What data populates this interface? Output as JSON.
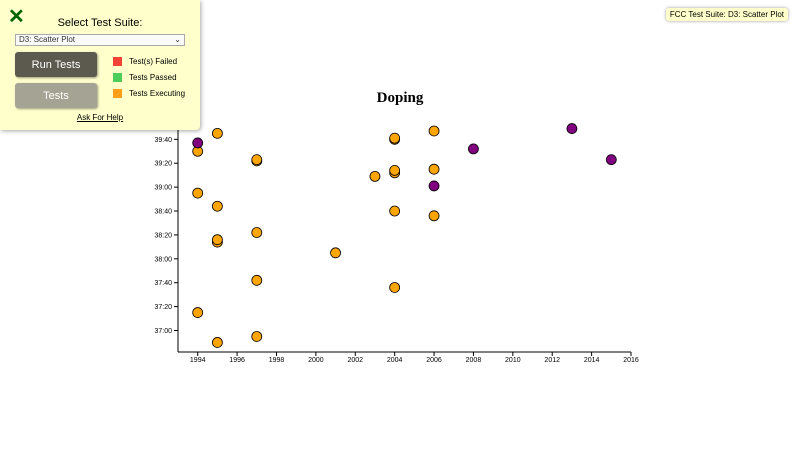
{
  "panel": {
    "close_icon": "close-x-icon",
    "label": "Select Test Suite:",
    "selected_suite": "D3: Scatter Plot",
    "run_button": "Run Tests",
    "tests_button": "Tests",
    "legend": [
      {
        "label": "Test(s) Failed",
        "color": "#f44336"
      },
      {
        "label": "Tests Passed",
        "color": "#4ccf5a"
      },
      {
        "label": "Tests Executing",
        "color": "#ff9e18"
      }
    ],
    "help_link": "Ask For Help"
  },
  "badge": "FCC Test Suite: D3: Scatter Plot",
  "chart_data": {
    "type": "scatter",
    "title": "Doping",
    "xlabel": "",
    "ylabel": "",
    "xlim": [
      1993,
      2016
    ],
    "ylim": [
      "36:42",
      "39:52"
    ],
    "x_ticks": [
      "1994",
      "1996",
      "1998",
      "2000",
      "2002",
      "2004",
      "2006",
      "2008",
      "2010",
      "2012",
      "2014",
      "2016"
    ],
    "y_ticks": [
      "37:00",
      "37:20",
      "37:40",
      "38:00",
      "38:20",
      "38:40",
      "39:00",
      "39:20",
      "39:40"
    ],
    "colors": {
      "doping": "#ffa500",
      "no_doping": "#800080"
    },
    "points": [
      {
        "x": 1995,
        "y": "36:50",
        "c": "doping"
      },
      {
        "x": 1997,
        "y": "36:55",
        "c": "doping"
      },
      {
        "x": 1994,
        "y": "37:15",
        "c": "doping"
      },
      {
        "x": 2004,
        "y": "37:36",
        "c": "doping"
      },
      {
        "x": 1997,
        "y": "37:42",
        "c": "doping"
      },
      {
        "x": 2001,
        "y": "38:05",
        "c": "doping"
      },
      {
        "x": 1997,
        "y": "38:22",
        "c": "doping"
      },
      {
        "x": 1995,
        "y": "38:14",
        "c": "doping"
      },
      {
        "x": 1995,
        "y": "38:16",
        "c": "doping"
      },
      {
        "x": 2006,
        "y": "38:36",
        "c": "doping"
      },
      {
        "x": 2004,
        "y": "38:40",
        "c": "doping"
      },
      {
        "x": 1995,
        "y": "38:44",
        "c": "doping"
      },
      {
        "x": 1994,
        "y": "38:55",
        "c": "doping"
      },
      {
        "x": 2006,
        "y": "39:01",
        "c": "no_doping"
      },
      {
        "x": 2003,
        "y": "39:09",
        "c": "doping"
      },
      {
        "x": 2004,
        "y": "39:12",
        "c": "doping"
      },
      {
        "x": 2004,
        "y": "39:14",
        "c": "doping"
      },
      {
        "x": 2006,
        "y": "39:15",
        "c": "doping"
      },
      {
        "x": 1997,
        "y": "39:22",
        "c": "doping"
      },
      {
        "x": 1997,
        "y": "39:23",
        "c": "doping"
      },
      {
        "x": 1994,
        "y": "39:30",
        "c": "doping"
      },
      {
        "x": 1994,
        "y": "39:37",
        "c": "no_doping"
      },
      {
        "x": 2004,
        "y": "39:40",
        "c": "doping"
      },
      {
        "x": 2004,
        "y": "39:41",
        "c": "doping"
      },
      {
        "x": 1995,
        "y": "39:45",
        "c": "doping"
      },
      {
        "x": 2006,
        "y": "39:47",
        "c": "doping"
      },
      {
        "x": 2008,
        "y": "39:32",
        "c": "no_doping"
      },
      {
        "x": 2013,
        "y": "39:49",
        "c": "no_doping"
      },
      {
        "x": 2015,
        "y": "39:23",
        "c": "no_doping"
      }
    ]
  }
}
